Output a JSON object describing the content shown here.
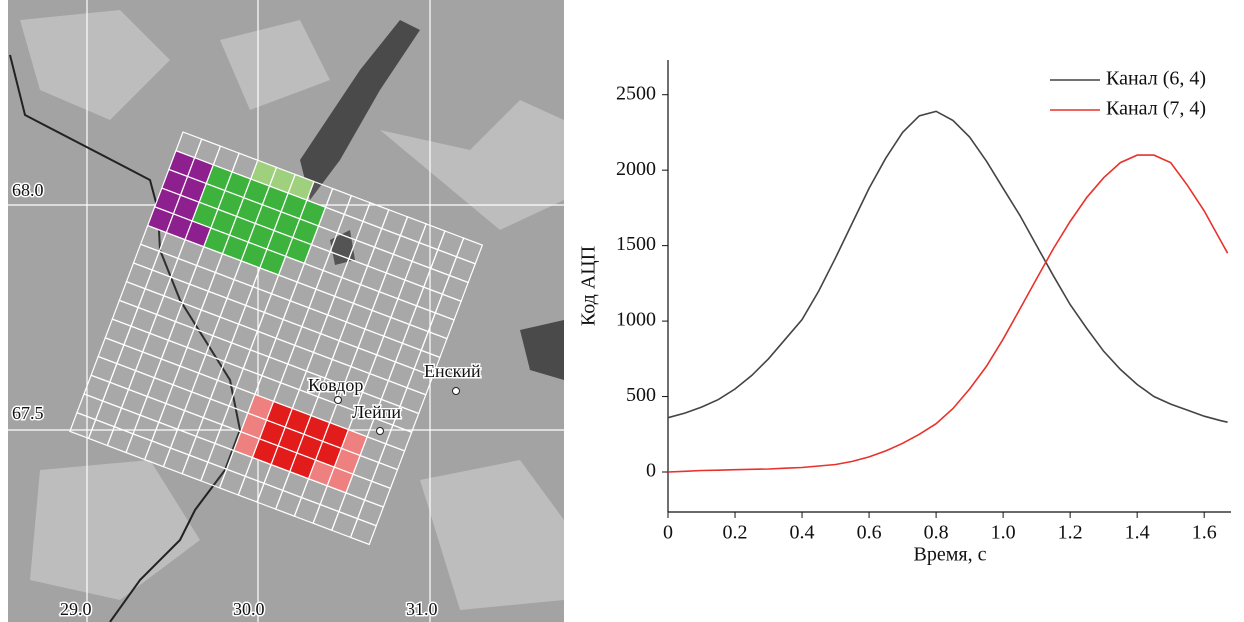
{
  "map": {
    "lat_labels": [
      "68.0",
      "67.5"
    ],
    "lon_labels": [
      "29.0",
      "30.0",
      "31.0"
    ],
    "towns": [
      "Ковдор",
      "Лейпи",
      "Енский"
    ]
  },
  "chart_data": {
    "type": "line",
    "xlabel": "Время, с",
    "ylabel": "Код АЦП",
    "x": [
      0,
      0.05,
      0.1,
      0.15,
      0.2,
      0.25,
      0.3,
      0.35,
      0.4,
      0.45,
      0.5,
      0.55,
      0.6,
      0.65,
      0.7,
      0.75,
      0.8,
      0.85,
      0.9,
      0.95,
      1.0,
      1.05,
      1.1,
      1.15,
      1.2,
      1.25,
      1.3,
      1.35,
      1.4,
      1.45,
      1.5,
      1.55,
      1.6,
      1.65,
      1.67
    ],
    "series": [
      {
        "name": "Канал (6, 4)",
        "color": "#444444",
        "values": [
          360,
          390,
          430,
          480,
          550,
          640,
          750,
          880,
          1010,
          1200,
          1420,
          1650,
          1880,
          2080,
          2250,
          2360,
          2390,
          2330,
          2220,
          2060,
          1880,
          1700,
          1500,
          1300,
          1110,
          950,
          800,
          680,
          580,
          500,
          450,
          410,
          370,
          340,
          330
        ]
      },
      {
        "name": "Канал (7, 4)",
        "color": "#e8322b",
        "values": [
          0,
          5,
          10,
          12,
          15,
          18,
          20,
          25,
          30,
          40,
          50,
          70,
          100,
          140,
          190,
          250,
          320,
          420,
          550,
          700,
          880,
          1080,
          1280,
          1480,
          1660,
          1820,
          1950,
          2050,
          2100,
          2100,
          2050,
          1900,
          1730,
          1530,
          1450
        ]
      }
    ],
    "xlim": [
      0,
      1.68
    ],
    "ylim": [
      -265,
      2730
    ],
    "xticks": [
      0,
      0.2,
      0.4,
      0.6,
      0.8,
      {
        "value": 1,
        "label": "1.0"
      },
      1.2,
      1.4,
      1.6
    ],
    "yticks": [
      0,
      500,
      1000,
      1500,
      2000,
      2500
    ],
    "legend": "upper right"
  }
}
